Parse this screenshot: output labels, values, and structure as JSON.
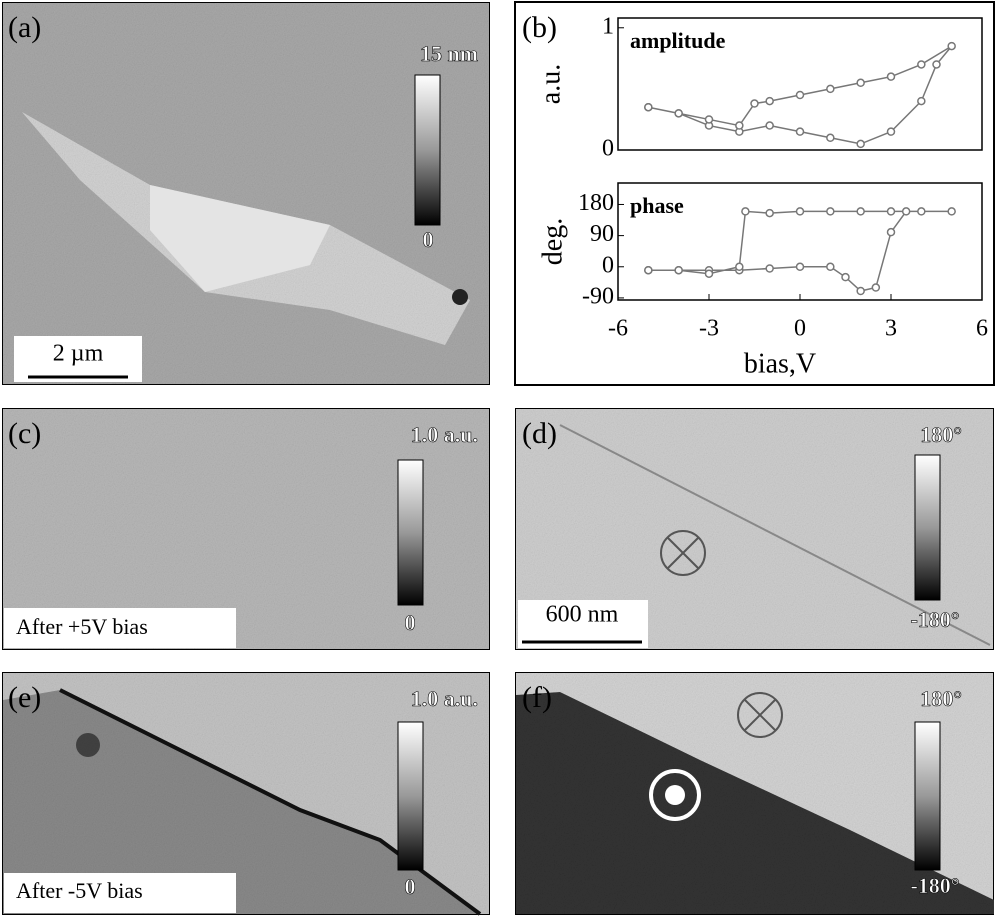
{
  "panels": {
    "a": {
      "label": "(a)",
      "colorbar_top": "15 nm",
      "colorbar_bottom": "0",
      "scalebar": "2 µm"
    },
    "b": {
      "label": "(b)"
    },
    "c": {
      "label": "(c)",
      "colorbar_top": "1.0 a.u.",
      "colorbar_bottom": "0",
      "note": "After +5V bias"
    },
    "d": {
      "label": "(d)",
      "colorbar_top": "180°",
      "colorbar_bottom": "-180°",
      "scalebar": "600 nm"
    },
    "e": {
      "label": "(e)",
      "colorbar_top": "1.0 a.u.",
      "colorbar_bottom": "0",
      "note": "After -5V bias"
    },
    "f": {
      "label": "(f)",
      "colorbar_top": "180°",
      "colorbar_bottom": "-180°"
    }
  },
  "chart_data": [
    {
      "type": "line",
      "title": "amplitude",
      "y_label": "a.u.",
      "color": "#777777",
      "xlim": [
        -6,
        6
      ],
      "ylim": [
        0,
        1.08
      ],
      "yticks": [
        0,
        1
      ],
      "x": [
        -5,
        -4,
        -3,
        -2,
        -1,
        0,
        1,
        2,
        3,
        4,
        4.5,
        5,
        4,
        3,
        2,
        1,
        0,
        -1,
        -1.5,
        -2,
        -3,
        -4,
        -5
      ],
      "values": [
        0.35,
        0.3,
        0.2,
        0.15,
        0.2,
        0.15,
        0.1,
        0.05,
        0.15,
        0.4,
        0.7,
        0.85,
        0.7,
        0.6,
        0.55,
        0.5,
        0.45,
        0.4,
        0.38,
        0.2,
        0.25,
        0.3,
        0.35
      ]
    },
    {
      "type": "line",
      "title": "phase",
      "y_label": "deg.",
      "x_label": "bias,V",
      "color": "#777777",
      "xlim": [
        -6,
        6
      ],
      "ylim": [
        -96,
        242
      ],
      "yticks": [
        -90,
        0,
        90,
        180
      ],
      "xticks": [
        -6,
        -3,
        0,
        3,
        6
      ],
      "x": [
        -5,
        -4,
        -3,
        -2,
        -1,
        0,
        1,
        1.5,
        2,
        2.5,
        3,
        3.5,
        5,
        4,
        3,
        2,
        1,
        0,
        -1,
        -1.8,
        -2,
        -3,
        -4,
        -5
      ],
      "values": [
        -10,
        -10,
        -10,
        -10,
        -5,
        0,
        0,
        -30,
        -70,
        -60,
        100,
        160,
        160,
        160,
        160,
        160,
        160,
        160,
        155,
        160,
        0,
        -20,
        -10,
        -10
      ]
    }
  ]
}
